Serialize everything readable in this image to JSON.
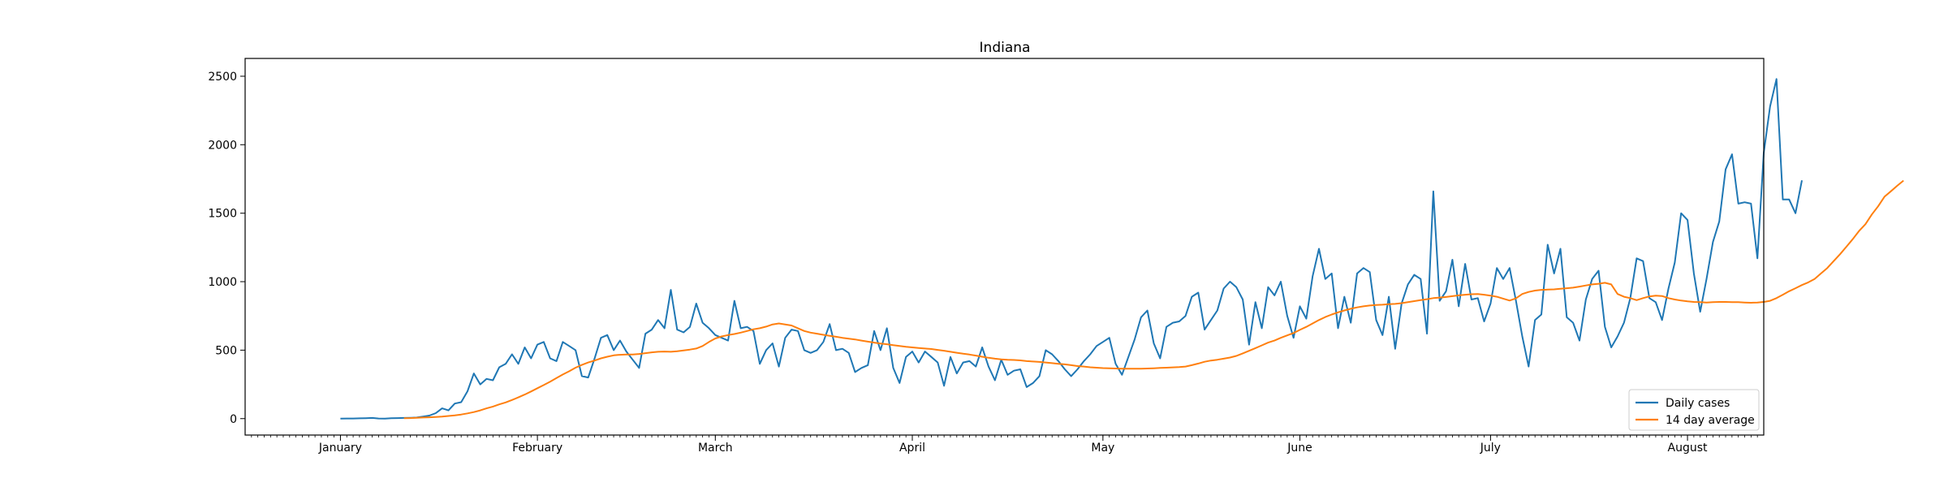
{
  "chart_data": {
    "type": "line",
    "title": "Indiana",
    "xlabel": "",
    "ylabel": "",
    "ylim": [
      -120,
      2630
    ],
    "yticks": [
      0,
      500,
      1000,
      1500,
      2000,
      2500
    ],
    "ytick_labels": [
      "0",
      "500",
      "1000",
      "1500",
      "2000",
      "2500"
    ],
    "xlim": [
      -15,
      224
    ],
    "xtick_positions": [
      0,
      31,
      59,
      90,
      120,
      151,
      181,
      212
    ],
    "xtick_labels": [
      "January",
      "February",
      "March",
      "April",
      "May",
      "June",
      "July",
      "August"
    ],
    "x_kind": "day of year 2021",
    "grid": false,
    "legend": "lower right",
    "series": [
      {
        "name": "Daily cases",
        "color": "#1f77b4",
        "x_start": 0,
        "values": [
          0,
          1,
          1,
          2,
          3,
          5,
          1,
          0,
          3,
          4,
          5,
          6,
          8,
          15,
          22,
          40,
          75,
          60,
          110,
          120,
          200,
          330,
          250,
          290,
          280,
          375,
          400,
          470,
          400,
          520,
          440,
          540,
          560,
          440,
          420,
          560,
          530,
          500,
          310,
          300,
          440,
          590,
          610,
          500,
          570,
          490,
          430,
          370,
          620,
          650,
          720,
          660,
          940,
          650,
          630,
          670,
          840,
          700,
          660,
          610,
          590,
          570,
          860,
          660,
          670,
          640,
          400,
          500,
          550,
          380,
          590,
          650,
          640,
          500,
          480,
          500,
          560,
          690,
          500,
          510,
          480,
          340,
          370,
          390,
          640,
          500,
          660,
          370,
          260,
          450,
          490,
          410,
          490,
          450,
          410,
          240,
          450,
          330,
          410,
          420,
          380,
          520,
          380,
          280,
          430,
          320,
          350,
          360,
          230,
          260,
          310,
          500,
          470,
          420,
          360,
          310,
          360,
          420,
          470,
          530,
          560,
          590,
          400,
          320,
          450,
          580,
          740,
          790,
          550,
          440,
          670,
          700,
          710,
          750,
          890,
          920,
          650,
          720,
          790,
          950,
          1000,
          960,
          870,
          540,
          850,
          660,
          960,
          900,
          1000,
          750,
          590,
          820,
          730,
          1040,
          1240,
          1020,
          1060,
          660,
          890,
          700,
          1060,
          1100,
          1070,
          720,
          610,
          890,
          510,
          840,
          980,
          1050,
          1020,
          620,
          1660,
          860,
          930,
          1160,
          820,
          1130,
          870,
          880,
          710,
          840,
          1100,
          1020,
          1100,
          860,
          600,
          380,
          720,
          760,
          1270,
          1060,
          1240,
          740,
          700,
          570,
          870,
          1020,
          1080,
          670,
          520,
          600,
          700,
          880,
          1170,
          1150,
          880,
          850,
          720,
          950,
          1140,
          1500,
          1450,
          1060,
          780,
          1020,
          1290,
          1440,
          1820,
          1930,
          1570,
          1580,
          1570,
          1170,
          1940,
          2280,
          2480,
          1600,
          1600,
          1500,
          1740
        ]
      },
      {
        "name": "14 day average",
        "color": "#ff7f0e",
        "x_start": 10,
        "values": [
          3,
          4,
          6,
          8,
          10,
          12,
          15,
          19,
          24,
          30,
          38,
          48,
          60,
          75,
          88,
          104,
          118,
          136,
          155,
          176,
          198,
          222,
          245,
          270,
          296,
          322,
          346,
          372,
          392,
          410,
          424,
          440,
          452,
          462,
          466,
          468,
          468,
          472,
          478,
          484,
          488,
          490,
          488,
          492,
          498,
          504,
          512,
          530,
          560,
          585,
          600,
          610,
          618,
          628,
          640,
          652,
          660,
          672,
          688,
          695,
          688,
          680,
          660,
          640,
          628,
          620,
          612,
          605,
          598,
          590,
          584,
          578,
          570,
          562,
          555,
          548,
          543,
          536,
          530,
          524,
          520,
          516,
          512,
          508,
          502,
          496,
          488,
          481,
          474,
          468,
          460,
          452,
          444,
          438,
          433,
          430,
          428,
          425,
          420,
          417,
          414,
          410,
          405,
          400,
          396,
          390,
          384,
          380,
          375,
          372,
          369,
          368,
          366,
          365,
          364,
          364,
          365,
          366,
          368,
          370,
          372,
          374,
          376,
          380,
          390,
          402,
          415,
          424,
          430,
          438,
          446,
          458,
          476,
          495,
          515,
          535,
          555,
          570,
          590,
          608,
          625,
          648,
          670,
          695,
          720,
          742,
          760,
          776,
          790,
          802,
          812,
          820,
          826,
          830,
          832,
          836,
          838,
          843,
          850,
          858,
          865,
          872,
          880,
          884,
          888,
          894,
          900,
          905,
          908,
          910,
          905,
          898,
          890,
          876,
          862,
          878,
          910,
          925,
          935,
          940,
          942,
          944,
          948,
          952,
          956,
          964,
          972,
          980,
          985,
          992,
          980,
          910,
          890,
          880,
          865,
          880,
          892,
          898,
          895,
          880,
          870,
          862,
          856,
          852,
          850,
          848,
          850,
          852,
          852,
          851,
          850,
          848,
          846,
          848,
          852,
          860,
          880,
          905,
          930,
          952,
          975,
          995,
          1020,
          1060,
          1100,
          1150,
          1200,
          1255,
          1310,
          1370,
          1420,
          1490,
          1550,
          1620,
          1660,
          1700,
          1738
        ]
      }
    ]
  }
}
